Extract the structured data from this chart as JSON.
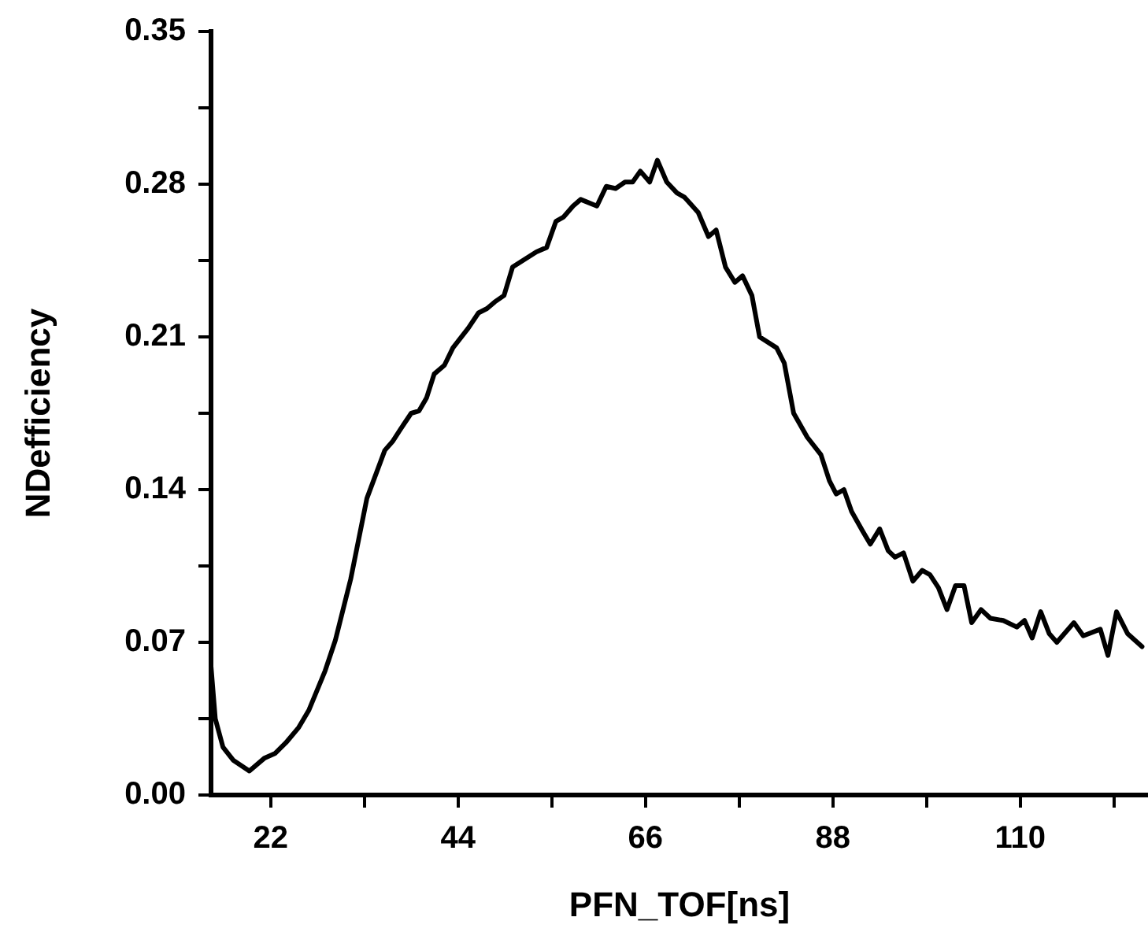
{
  "chart_data": {
    "type": "line",
    "xlabel": "PFN_TOF[ns]",
    "ylabel": "NDefficiency",
    "xlim": [
      15,
      125
    ],
    "xticks": [
      22,
      {
        "value": 33,
        "label": null
      },
      44,
      {
        "value": 55,
        "label": null
      },
      66,
      {
        "value": 77,
        "label": null
      },
      88,
      {
        "value": 99,
        "label": null
      },
      110,
      {
        "value": 121,
        "label": null
      }
    ],
    "ylim": [
      0,
      0.35
    ],
    "yticks": [
      {
        "value": 0,
        "label": "0.00"
      },
      {
        "value": 0.035,
        "label": null
      },
      {
        "value": 0.07,
        "label": "0.07"
      },
      {
        "value": 0.105,
        "label": null
      },
      {
        "value": 0.14,
        "label": "0.14"
      },
      {
        "value": 0.175,
        "label": null
      },
      {
        "value": 0.21,
        "label": "0.21"
      },
      {
        "value": 0.245,
        "label": null
      },
      {
        "value": 0.28,
        "label": "0.28"
      },
      {
        "value": 0.315,
        "label": null
      },
      {
        "value": 0.35,
        "label": "0.35"
      }
    ],
    "grid": false,
    "legend": false,
    "marker": "none",
    "line_style": "solid",
    "series": [
      {
        "color": "#000000",
        "x": [
          15,
          15.5,
          16.4,
          17.6,
          19.5,
          21.3,
          22.5,
          23.8,
          25.3,
          26.5,
          28.4,
          29.6,
          31.4,
          33.3,
          35.4,
          36.3,
          37.3,
          38.5,
          39.4,
          40.3,
          41.2,
          42.4,
          43.4,
          45.2,
          46.4,
          47.4,
          48.3,
          49.4,
          50.4,
          51.6,
          53.2,
          54.4,
          55.5,
          56.4,
          57.5,
          58.4,
          60.3,
          61.4,
          62.5,
          63.6,
          64.5,
          65.4,
          66.5,
          67.4,
          68.5,
          69.7,
          70.6,
          72.2,
          73.4,
          74.3,
          75.4,
          76.5,
          77.4,
          78.5,
          79.4,
          81.4,
          82.3,
          83.4,
          85.0,
          86.6,
          87.6,
          88.4,
          89.3,
          90.2,
          91.5,
          92.4,
          93.5,
          94.5,
          95.3,
          96.3,
          97.4,
          98.5,
          99.4,
          100.4,
          101.4,
          102.4,
          103.4,
          104.3,
          105.4,
          106.5,
          108.0,
          109.6,
          110.5,
          111.4,
          112.4,
          113.4,
          114.3,
          116.3,
          117.4,
          119.4,
          120.3,
          121.3,
          122.6,
          124.3
        ],
        "values": [
          0.059,
          0.035,
          0.022,
          0.016,
          0.011,
          0.017,
          0.019,
          0.024,
          0.031,
          0.039,
          0.057,
          0.071,
          0.099,
          0.136,
          0.158,
          0.162,
          0.168,
          0.175,
          0.176,
          0.182,
          0.193,
          0.197,
          0.205,
          0.214,
          0.221,
          0.223,
          0.226,
          0.229,
          0.242,
          0.245,
          0.249,
          0.251,
          0.263,
          0.265,
          0.27,
          0.273,
          0.27,
          0.279,
          0.278,
          0.281,
          0.281,
          0.286,
          0.281,
          0.291,
          0.281,
          0.276,
          0.274,
          0.267,
          0.256,
          0.259,
          0.242,
          0.235,
          0.238,
          0.229,
          0.21,
          0.205,
          0.198,
          0.175,
          0.164,
          0.156,
          0.144,
          0.138,
          0.14,
          0.13,
          0.121,
          0.115,
          0.122,
          0.112,
          0.109,
          0.111,
          0.098,
          0.103,
          0.101,
          0.095,
          0.085,
          0.096,
          0.096,
          0.079,
          0.085,
          0.081,
          0.08,
          0.077,
          0.08,
          0.072,
          0.084,
          0.074,
          0.07,
          0.079,
          0.073,
          0.076,
          0.064,
          0.084,
          0.074,
          0.068
        ]
      }
    ]
  }
}
